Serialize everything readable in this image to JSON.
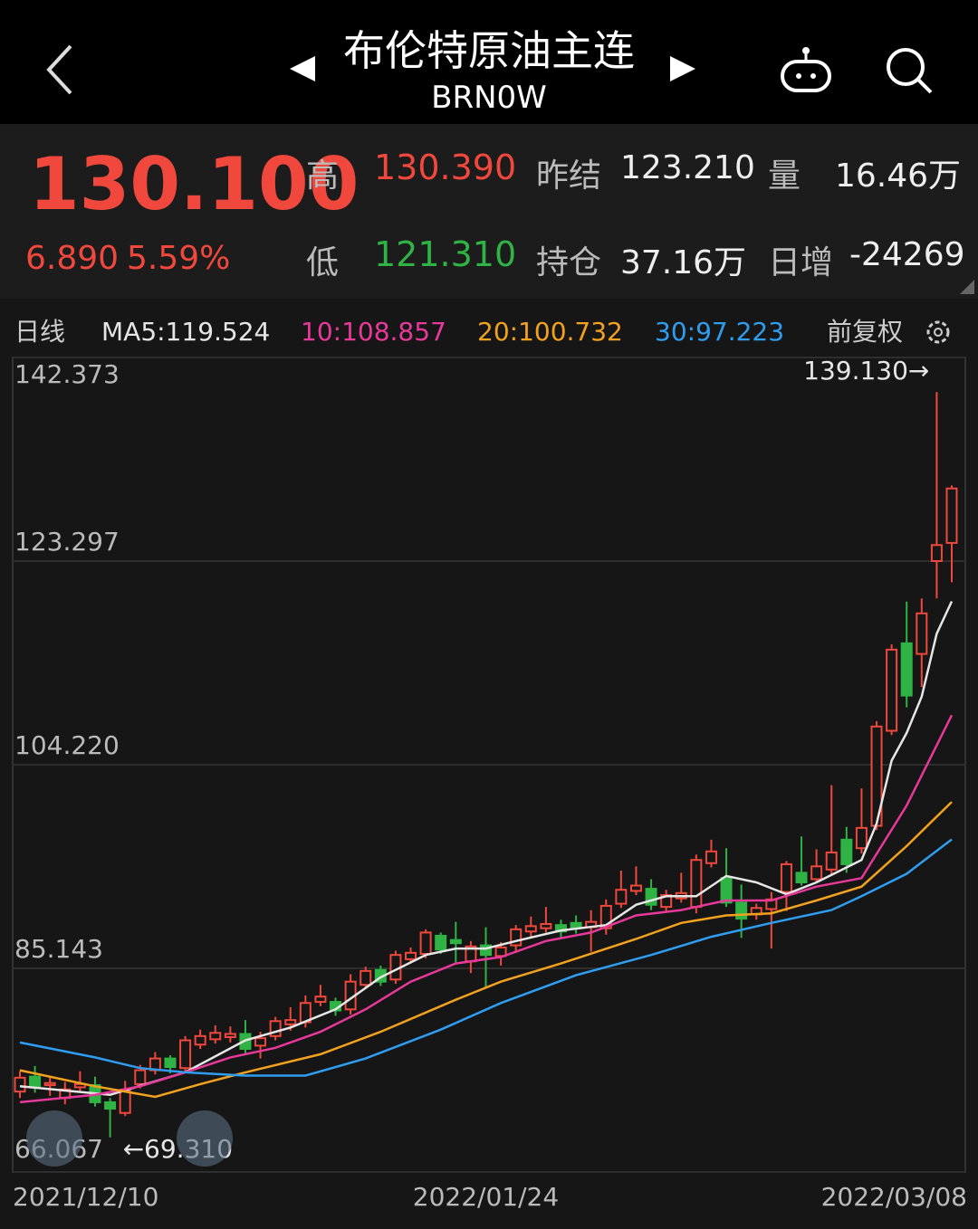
{
  "topbar": {
    "title": "布伦特原油主连",
    "code": "BRN0W"
  },
  "quote": {
    "price": "130.100",
    "change": "6.890",
    "change_pct": "5.59%",
    "high_label": "高",
    "high": "130.390",
    "low_label": "低",
    "low": "121.310",
    "prev_settle_label": "昨结",
    "prev_settle": "123.210",
    "open_interest_label": "持仓",
    "open_interest": "37.16万",
    "volume_label": "量",
    "volume": "16.46万",
    "daily_change_label": "日增",
    "daily_change": "-24269"
  },
  "chart_data": {
    "type": "candlestick",
    "period_label": "日线",
    "adjust_label": "前复权",
    "categories": [
      "2021/12/10",
      null,
      null,
      null,
      null,
      null,
      null,
      null,
      null,
      null,
      null,
      null,
      null,
      null,
      null,
      null,
      null,
      null,
      null,
      null,
      null,
      null,
      null,
      null,
      null,
      null,
      null,
      null,
      null,
      null,
      null,
      "2022/01/24",
      null,
      null,
      null,
      null,
      null,
      null,
      null,
      null,
      null,
      null,
      null,
      null,
      null,
      null,
      null,
      null,
      null,
      null,
      null,
      null,
      null,
      null,
      null,
      null,
      null,
      null,
      null,
      null,
      null,
      null,
      "2022/03/08"
    ],
    "open": [
      73.6,
      75.0,
      74.2,
      73.0,
      74.0,
      74.2,
      72.6,
      71.6,
      74.3,
      75.6,
      76.7,
      75.8,
      78.0,
      78.5,
      78.7,
      79.0,
      77.9,
      78.8,
      79.9,
      80.1,
      82.0,
      82.0,
      81.3,
      83.6,
      85.0,
      84.1,
      86.0,
      86.5,
      88.2,
      87.8,
      85.8,
      87.3,
      86.3,
      87.3,
      88.6,
      88.9,
      89.2,
      89.4,
      89.0,
      88.9,
      91.2,
      92.4,
      92.6,
      90.9,
      91.7,
      90.9,
      95.0,
      93.6,
      91.3,
      90.2,
      90.7,
      92.3,
      94.1,
      93.5,
      94.4,
      97.2,
      96.4,
      98.5,
      107.4,
      115.6,
      114.6,
      123.3,
      125.0
    ],
    "high": [
      75.5,
      76.0,
      75.0,
      74.5,
      75.5,
      75.0,
      73.0,
      74.6,
      76.1,
      77.3,
      77.0,
      78.8,
      79.4,
      79.8,
      79.7,
      80.3,
      79.2,
      80.6,
      81.5,
      82.6,
      83.6,
      82.4,
      84.6,
      85.3,
      85.4,
      86.8,
      87.1,
      88.8,
      88.5,
      89.5,
      87.7,
      89.0,
      87.6,
      89.2,
      90.0,
      90.9,
      89.7,
      90.1,
      90.6,
      91.6,
      94.3,
      94.7,
      93.5,
      92.5,
      94.1,
      95.8,
      97.2,
      96.4,
      93.0,
      91.2,
      92.3,
      95.2,
      97.5,
      96.3,
      102.3,
      98.4,
      102.0,
      108.3,
      115.5,
      119.5,
      119.8,
      139.13,
      130.39
    ],
    "low": [
      73.0,
      73.5,
      73.2,
      72.4,
      73.6,
      72.2,
      69.31,
      71.3,
      73.9,
      75.2,
      75.3,
      75.5,
      77.6,
      78.1,
      78.2,
      77.2,
      76.7,
      78.4,
      79.3,
      79.6,
      81.6,
      80.7,
      80.8,
      83.2,
      83.5,
      83.7,
      85.6,
      86.1,
      86.5,
      85.7,
      84.7,
      83.3,
      85.4,
      86.6,
      88.0,
      88.5,
      87.9,
      88.4,
      86.7,
      88.3,
      90.8,
      92.0,
      90.6,
      90.4,
      91.3,
      90.3,
      94.6,
      90.9,
      88.0,
      89.7,
      87.0,
      90.5,
      92.9,
      93.1,
      93.9,
      94.1,
      95.9,
      98.1,
      107.0,
      109.6,
      111.5,
      119.8,
      121.31
    ],
    "close": [
      74.9,
      74.1,
      74.4,
      73.8,
      74.3,
      72.6,
      72.0,
      73.7,
      75.6,
      76.7,
      75.9,
      78.4,
      78.8,
      79.1,
      79.0,
      77.6,
      78.6,
      80.2,
      80.3,
      81.9,
      82.5,
      81.2,
      83.9,
      84.9,
      83.9,
      86.4,
      86.6,
      88.5,
      86.9,
      87.5,
      87.2,
      86.4,
      87.1,
      88.8,
      89.1,
      89.3,
      88.6,
      88.9,
      89.5,
      91.0,
      92.5,
      92.9,
      91.1,
      92.0,
      92.2,
      95.3,
      96.1,
      91.3,
      89.8,
      90.8,
      91.6,
      94.9,
      93.2,
      94.7,
      96.0,
      94.9,
      98.3,
      107.8,
      115.0,
      110.7,
      118.4,
      124.8,
      130.1
    ],
    "up_color": "#f0483c",
    "down_color": "#2fb344",
    "series": [
      {
        "name": "MA5:119.524",
        "color": "#e6e6e6",
        "x": [
          0,
          6,
          11,
          15,
          18,
          21,
          24,
          27,
          29,
          31,
          33,
          36,
          39,
          41,
          43,
          45,
          47,
          49,
          51,
          53,
          55,
          56,
          57,
          58,
          59,
          60,
          61,
          62
        ],
        "values": [
          74.1,
          73.3,
          75.4,
          78.4,
          79.6,
          81.3,
          84.3,
          86.4,
          87.0,
          87.0,
          87.7,
          88.7,
          89.2,
          91.1,
          91.9,
          91.9,
          93.8,
          93.2,
          92.1,
          93.2,
          94.6,
          95.3,
          98.7,
          104.6,
          107.2,
          110.6,
          116.5,
          119.524
        ]
      },
      {
        "name": "10:108.857",
        "color": "#e8399a",
        "x": [
          0,
          5,
          8,
          11,
          14,
          17,
          20,
          23,
          26,
          29,
          32,
          35,
          38,
          41,
          44,
          47,
          50,
          53,
          56,
          59,
          62
        ],
        "values": [
          72.6,
          73.3,
          74.1,
          75.4,
          76.8,
          77.7,
          79.2,
          81.3,
          83.9,
          85.6,
          86.2,
          87.7,
          88.5,
          90.1,
          90.6,
          91.5,
          91.5,
          92.8,
          93.6,
          100.4,
          108.857
        ]
      },
      {
        "name": "20:100.732",
        "color": "#f3a21d",
        "x": [
          0,
          5,
          9,
          12,
          15,
          20,
          24,
          29,
          32,
          36,
          41,
          44,
          47,
          50,
          53,
          56,
          59,
          62
        ],
        "values": [
          75.6,
          74.1,
          73.1,
          74.3,
          75.4,
          77.1,
          79.2,
          82.2,
          83.9,
          85.6,
          87.9,
          89.4,
          90.1,
          90.3,
          91.5,
          92.8,
          96.6,
          100.732
        ]
      },
      {
        "name": "30:97.223",
        "color": "#2f9ef0",
        "x": [
          0,
          5,
          8,
          11,
          15,
          19,
          23,
          28,
          32,
          37,
          42,
          46,
          50,
          54,
          56,
          59,
          62
        ],
        "values": [
          78.2,
          76.8,
          75.8,
          75.4,
          75.1,
          75.1,
          76.7,
          79.4,
          81.9,
          84.5,
          86.4,
          88.1,
          89.4,
          90.6,
          91.9,
          94.0,
          97.223
        ]
      }
    ],
    "ylim": [
      66.067,
      142.373
    ],
    "yticks": [
      142.373,
      123.297,
      104.22,
      85.143,
      66.067
    ],
    "ytick_labels": [
      "142.373",
      "123.297",
      "104.220",
      "85.143",
      "66.067"
    ],
    "annotations": [
      {
        "text": "139.130→",
        "index": 61,
        "value": 139.13
      },
      {
        "text": "←69.310",
        "index": 6,
        "value": 69.31
      }
    ]
  }
}
